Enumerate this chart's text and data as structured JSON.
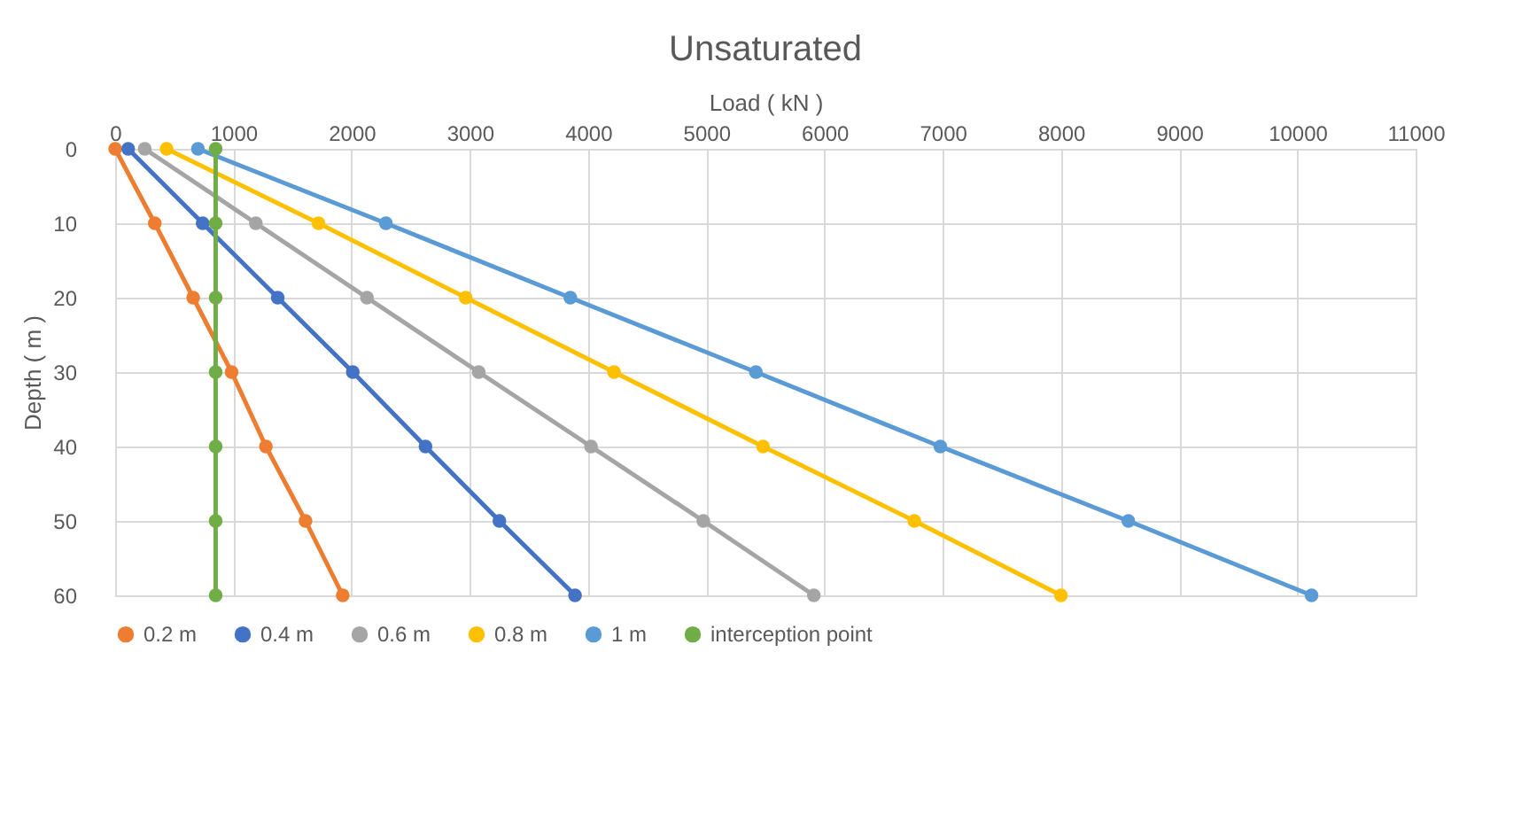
{
  "chart_data": {
    "type": "line",
    "title": "Unsaturated",
    "xlabel": "Load ( kN )",
    "ylabel": "Depth ( m )",
    "series": [
      {
        "name": "0.2 m",
        "color": "#ed7d31",
        "x": [
          0,
          335,
          660,
          985,
          1275,
          1610,
          1925
        ],
        "values": [
          0,
          10,
          20,
          30,
          40,
          50,
          60
        ]
      },
      {
        "name": "0.4 m",
        "color": "#4472c4",
        "x": [
          110,
          740,
          1375,
          2010,
          2625,
          3250,
          3890
        ],
        "values": [
          0,
          10,
          20,
          30,
          40,
          50,
          60
        ]
      },
      {
        "name": "0.6 m",
        "color": "#a5a5a5",
        "x": [
          250,
          1190,
          2130,
          3075,
          4025,
          4975,
          5910
        ],
        "values": [
          0,
          10,
          20,
          30,
          40,
          50,
          60
        ]
      },
      {
        "name": "0.8 m",
        "color": "#ffc000",
        "x": [
          435,
          1720,
          2965,
          4220,
          5480,
          6760,
          8000
        ],
        "values": [
          0,
          10,
          20,
          30,
          40,
          50,
          60
        ]
      },
      {
        "name": "1 m",
        "color": "#5b9bd5",
        "x": [
          700,
          2290,
          3850,
          5420,
          6980,
          8570,
          10120
        ],
        "values": [
          0,
          10,
          20,
          30,
          40,
          50,
          60
        ]
      },
      {
        "name": "interception point",
        "color": "#70ad47",
        "x": [
          850,
          850,
          850,
          850,
          850,
          850,
          850
        ],
        "values": [
          0,
          10,
          20,
          30,
          40,
          50,
          60
        ]
      }
    ],
    "xlim": [
      0,
      11000
    ],
    "xticks": [
      0,
      1000,
      2000,
      3000,
      4000,
      5000,
      6000,
      7000,
      8000,
      9000,
      10000,
      11000
    ],
    "ylim": [
      60,
      0
    ],
    "yticks": [
      0,
      10,
      20,
      30,
      40,
      50,
      60
    ],
    "grid": true,
    "legend": "bottom",
    "marker": "circle",
    "line_style": "solid"
  }
}
